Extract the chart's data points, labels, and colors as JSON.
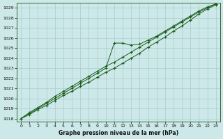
{
  "xlabel": "Graphe pression niveau de la mer (hPa)",
  "xlim": [
    -0.5,
    23.5
  ],
  "ylim": [
    1017.7,
    1029.5
  ],
  "yticks": [
    1018,
    1019,
    1020,
    1021,
    1022,
    1023,
    1024,
    1025,
    1026,
    1027,
    1028,
    1029
  ],
  "xticks": [
    0,
    1,
    2,
    3,
    4,
    5,
    6,
    7,
    8,
    9,
    10,
    11,
    12,
    13,
    14,
    15,
    16,
    17,
    18,
    19,
    20,
    21,
    22,
    23
  ],
  "bg_color": "#cce8e8",
  "grid_color": "#aacccc",
  "line_color": "#1a5c1a",
  "series": {
    "s1": [
      1018.0,
      1018.4,
      1018.9,
      1019.3,
      1019.8,
      1020.3,
      1020.7,
      1021.2,
      1021.6,
      1022.1,
      1022.6,
      1023.0,
      1023.5,
      1024.0,
      1024.5,
      1025.1,
      1025.6,
      1026.1,
      1026.7,
      1027.2,
      1027.8,
      1028.4,
      1028.9,
      1029.3
    ],
    "s2": [
      1018.0,
      1018.5,
      1019.0,
      1019.5,
      1020.0,
      1020.5,
      1021.0,
      1021.5,
      1022.0,
      1022.5,
      1023.0,
      1025.5,
      1025.5,
      1025.3,
      1025.4,
      1025.8,
      1026.2,
      1026.7,
      1027.2,
      1027.7,
      1028.2,
      1028.7,
      1029.1,
      1029.4
    ],
    "s3": [
      1018.0,
      1018.6,
      1019.1,
      1019.6,
      1020.2,
      1020.7,
      1021.2,
      1021.7,
      1022.2,
      1022.7,
      1023.2,
      1023.6,
      1024.1,
      1024.6,
      1025.1,
      1025.6,
      1026.1,
      1026.6,
      1027.1,
      1027.6,
      1028.1,
      1028.6,
      1029.0,
      1029.4
    ]
  }
}
